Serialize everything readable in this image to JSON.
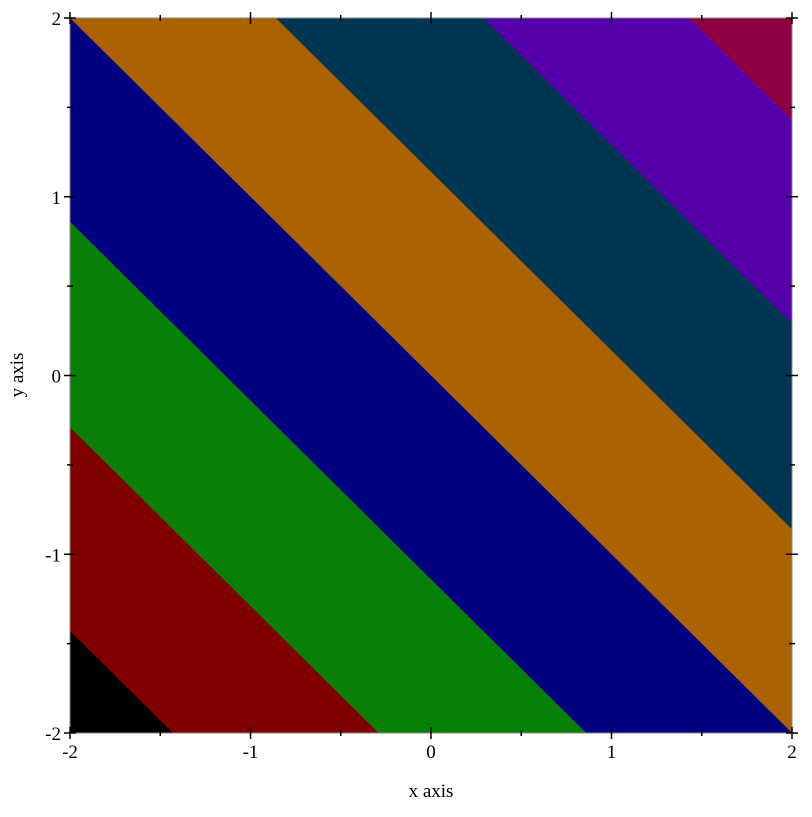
{
  "chart_data": {
    "type": "contour",
    "function": "x + y",
    "title": "",
    "xlabel": "x axis",
    "ylabel": "y axis",
    "xlim": [
      -2,
      2
    ],
    "ylim": [
      -2,
      2
    ],
    "x_ticks": [
      "-2",
      "-1",
      "0",
      "1",
      "2"
    ],
    "y_ticks": [
      "-2",
      "-1",
      "0",
      "1",
      "2"
    ],
    "grid": false,
    "contour_levels": [
      -3.43,
      -2.29,
      -1.14,
      0,
      1.14,
      2.29,
      3.43
    ],
    "band_colors": [
      "#000000",
      "#800000",
      "#088008",
      "#000080",
      "#ab6200",
      "#003652",
      "#5500aa",
      "#8e003f"
    ]
  }
}
